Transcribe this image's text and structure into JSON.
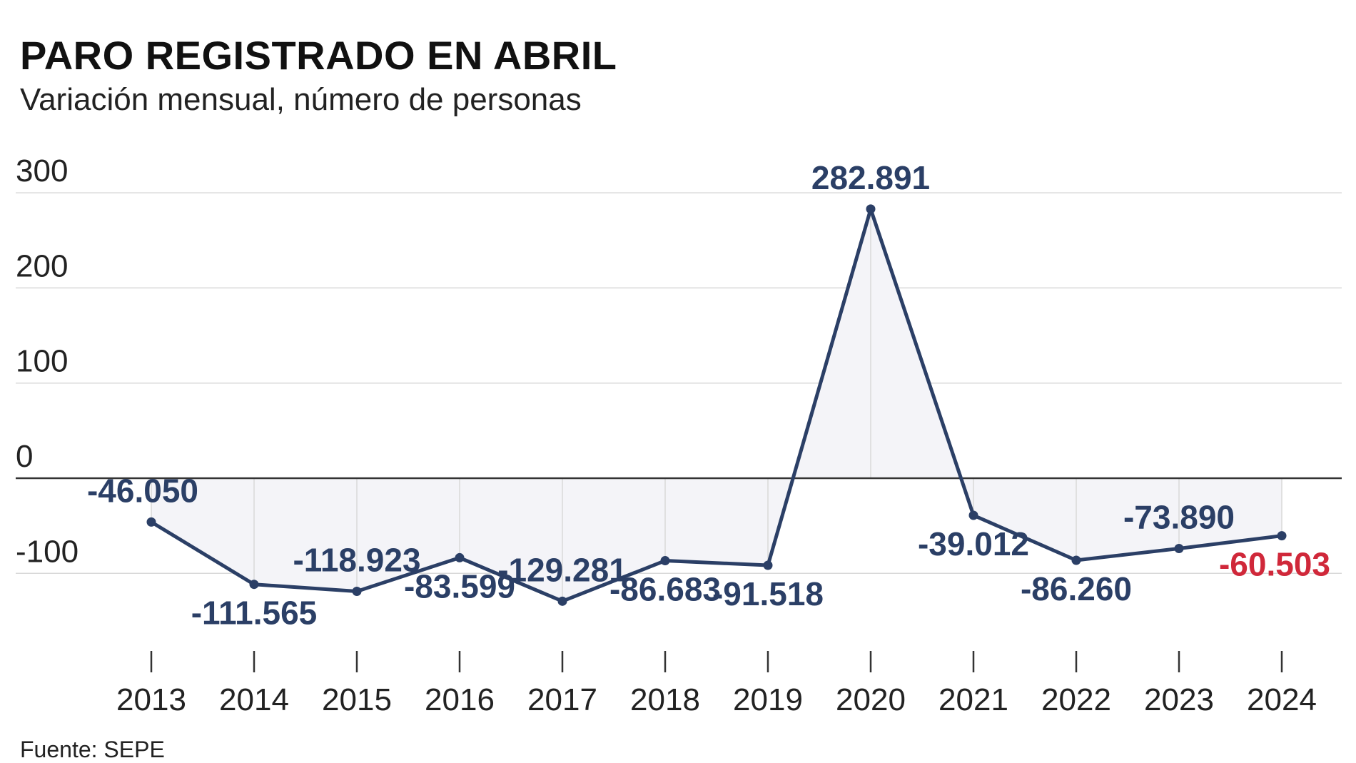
{
  "header": {
    "title": "PARO REGISTRADO EN ABRIL",
    "subtitle": "Variación mensual, número de personas"
  },
  "footer": {
    "source": "Fuente: SEPE"
  },
  "colors": {
    "line": "#2b3f66",
    "highlight": "#d0283a",
    "area": "#f4f4f8",
    "grid": "#d9d9d9",
    "zero_axis": "#333333"
  },
  "chart_data": {
    "type": "line",
    "title": "PARO REGISTRADO EN ABRIL",
    "subtitle": "Variación mensual, número de personas",
    "x": [
      "2013",
      "2014",
      "2015",
      "2016",
      "2017",
      "2018",
      "2019",
      "2020",
      "2021",
      "2022",
      "2023",
      "2024"
    ],
    "values": [
      -46.05,
      -111.565,
      -118.923,
      -83.599,
      -129.281,
      -86.683,
      -91.518,
      282.891,
      -39.012,
      -86.26,
      -73.89,
      -60.503
    ],
    "labels": [
      "-46.050",
      "-111.565",
      "-118.923",
      "-83.599",
      "-129.281",
      "-86.683",
      "-91.518",
      "282.891",
      "-39.012",
      "-86.260",
      "-73.890",
      "-60.503"
    ],
    "label_positions": [
      "above",
      "below",
      "above",
      "below",
      "above",
      "below",
      "below",
      "above",
      "below",
      "below",
      "above",
      "below"
    ],
    "highlight_index": 11,
    "yticks": [
      300,
      200,
      100,
      0,
      -100
    ],
    "ytick_labels": [
      "300",
      "200",
      "100",
      "0",
      "-100"
    ],
    "ylim": [
      -180,
      330
    ],
    "grid": true,
    "area_fill": true,
    "legend": "none"
  }
}
